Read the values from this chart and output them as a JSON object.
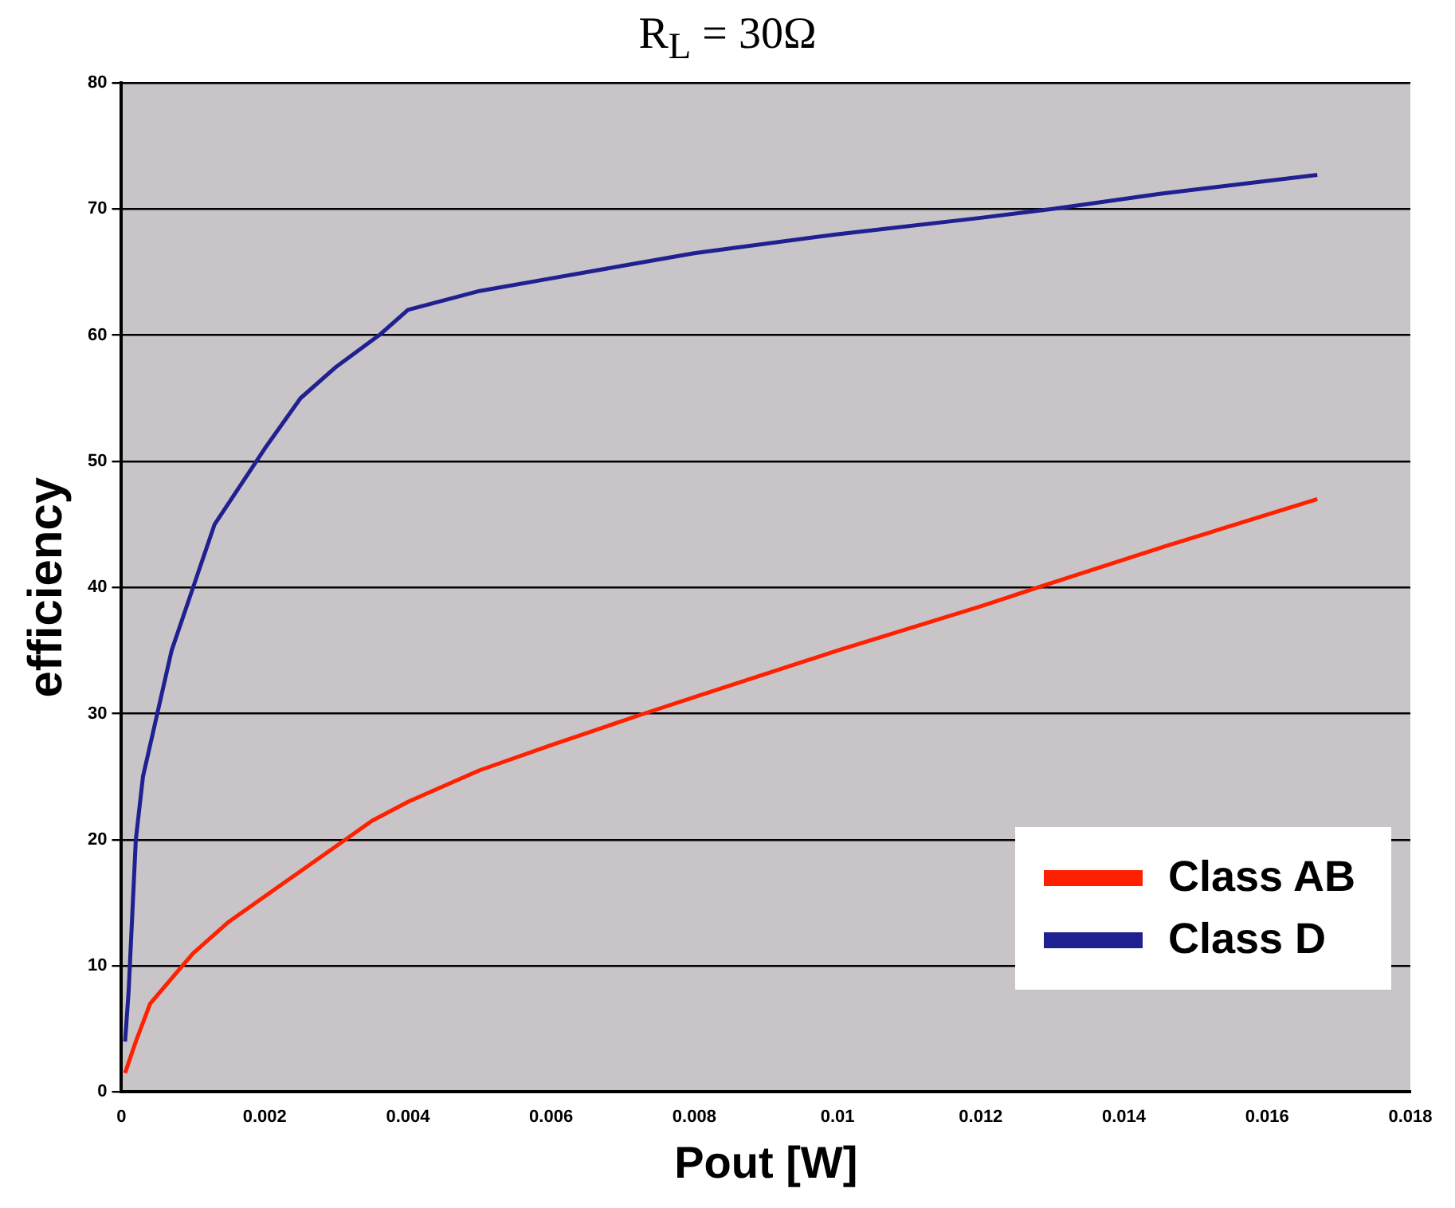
{
  "chart_data": {
    "type": "line",
    "title": "R$_{L}$ = 30Ω",
    "xlabel": "Pout [W]",
    "ylabel": "efficiency",
    "xlim": [
      0,
      0.018
    ],
    "xticks": [
      0,
      0.002,
      0.004,
      0.006,
      0.008,
      0.01,
      0.012,
      0.014,
      0.016,
      0.018
    ],
    "ylim": [
      0,
      80
    ],
    "yticks": [
      0,
      10,
      20,
      30,
      40,
      50,
      60,
      70,
      80
    ],
    "grid": "y",
    "legend": "bottom right",
    "marker": "none",
    "line_style": "solid",
    "series": [
      {
        "name": "Class AB",
        "color": "#ff2000",
        "x": [
          5e-05,
          0.0002,
          0.0004,
          0.0007,
          0.001,
          0.0015,
          0.002,
          0.003,
          0.0035,
          0.004,
          0.005,
          0.006,
          0.0073,
          0.008,
          0.01,
          0.012,
          0.0128,
          0.0146,
          0.0167
        ],
        "values": [
          1.5,
          4,
          7,
          9,
          11,
          13.5,
          15.5,
          19.5,
          21.5,
          23,
          25.5,
          27.5,
          30,
          31.3,
          35,
          38.5,
          40,
          43.3,
          47
        ]
      },
      {
        "name": "Class D",
        "color": "#202090",
        "x": [
          5e-05,
          0.0001,
          0.00015,
          0.0002,
          0.0003,
          0.0005,
          0.0007,
          0.001,
          0.0013,
          0.002,
          0.0025,
          0.003,
          0.0036,
          0.004,
          0.005,
          0.006,
          0.007,
          0.008,
          0.01,
          0.012,
          0.013,
          0.0145,
          0.0167
        ],
        "values": [
          4,
          8,
          14,
          20,
          25,
          30,
          35,
          40,
          45,
          51,
          55,
          57.5,
          60,
          62,
          63.5,
          64.5,
          65.5,
          66.5,
          68,
          69.3,
          70,
          71.2,
          72.7
        ]
      }
    ]
  }
}
